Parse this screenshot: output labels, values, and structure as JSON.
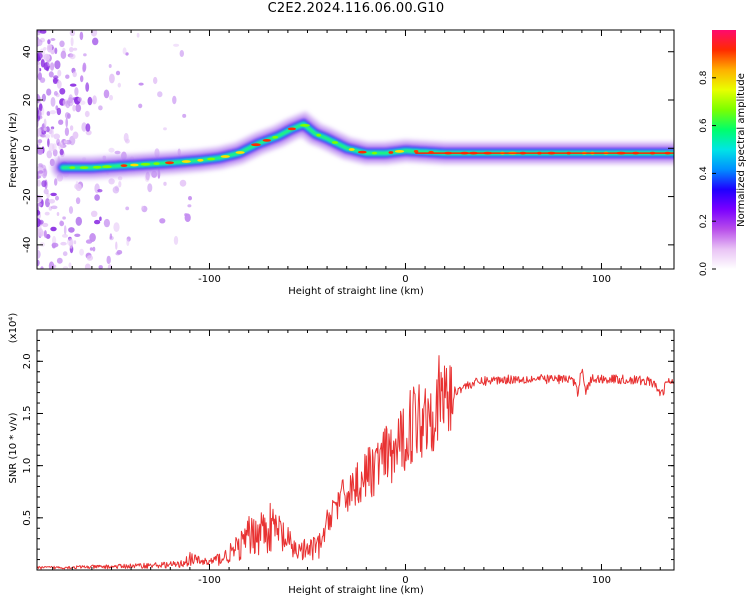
{
  "figure": {
    "title": "C2E2.2024.116.06.00.G10"
  },
  "chart_data": [
    {
      "type": "heatmap",
      "xlabel": "Height of straight line (km)",
      "ylabel": "Frequency (Hz)",
      "xlim": [
        -188,
        137
      ],
      "ylim": [
        -50,
        49
      ],
      "xticks": [
        -100,
        0,
        100
      ],
      "yticks": [
        -40,
        -20,
        0,
        20,
        40
      ],
      "grid": false,
      "colorbar": {
        "label": "Normalized spectral amplitude",
        "ticks": [
          0.0,
          0.2,
          0.4,
          0.6,
          0.8
        ],
        "range": [
          0,
          1
        ],
        "colors": [
          "#ffffff",
          "#e9c3f5",
          "#b84dea",
          "#7a00ff",
          "#1e00ff",
          "#0090ff",
          "#00e5e5",
          "#00ff6a",
          "#7cff00",
          "#e9ff00",
          "#ffb000",
          "#ff2a00",
          "#ff0a6e"
        ]
      },
      "ridge": {
        "x": [
          -175,
          -160,
          -140,
          -120,
          -105,
          -95,
          -85,
          -75,
          -65,
          -58,
          -52,
          -46,
          -40,
          -35,
          -30,
          -25,
          -20,
          -10,
          0,
          20,
          60,
          100,
          137
        ],
        "y": [
          -8,
          -8,
          -7,
          -6,
          -5,
          -4,
          -2,
          2,
          5,
          8,
          10,
          6,
          4,
          2,
          0,
          -1,
          -2,
          -2,
          -1,
          -2,
          -2,
          -2,
          -2
        ]
      }
    },
    {
      "type": "line",
      "xlabel": "Height of straight line (km)",
      "ylabel": "SNR (10 * v/v)",
      "yscale_label": "(x10⁴)",
      "xlim": [
        -188,
        137
      ],
      "ylim": [
        0,
        2.3
      ],
      "xticks": [
        -100,
        0,
        100
      ],
      "yticks": [
        0.5,
        1.0,
        1.5,
        2.0
      ],
      "grid": false,
      "series": [
        {
          "color": "#e83232",
          "envelope": {
            "x": [
              -188,
              -150,
              -115,
              -110,
              -105,
              -100,
              -92,
              -85,
              -80,
              -75,
              -70,
              -65,
              -62,
              -58,
              -55,
              -50,
              -46,
              -43,
              -40,
              -37,
              -34,
              -31,
              -28,
              -25,
              -22,
              -19,
              -16,
              -13,
              -10,
              -7,
              -4,
              -1,
              2,
              6,
              10,
              14,
              18,
              22,
              26,
              30,
              35,
              40,
              45,
              55,
              65,
              75,
              85,
              88,
              90,
              92,
              95,
              105,
              115,
              125,
              131,
              133,
              137
            ],
            "y": [
              0.02,
              0.03,
              0.05,
              0.1,
              0.08,
              0.07,
              0.12,
              0.2,
              0.3,
              0.35,
              0.38,
              0.35,
              0.28,
              0.2,
              0.18,
              0.17,
              0.2,
              0.25,
              0.45,
              0.6,
              0.65,
              0.7,
              0.78,
              0.82,
              0.88,
              0.92,
              0.98,
              1.05,
              1.08,
              1.1,
              1.15,
              1.25,
              1.38,
              1.45,
              1.5,
              1.57,
              1.63,
              1.68,
              1.72,
              1.76,
              1.79,
              1.81,
              1.82,
              1.83,
              1.83,
              1.83,
              1.83,
              1.7,
              1.95,
              1.72,
              1.83,
              1.83,
              1.82,
              1.81,
              1.68,
              1.8,
              1.8
            ]
          }
        }
      ]
    }
  ]
}
